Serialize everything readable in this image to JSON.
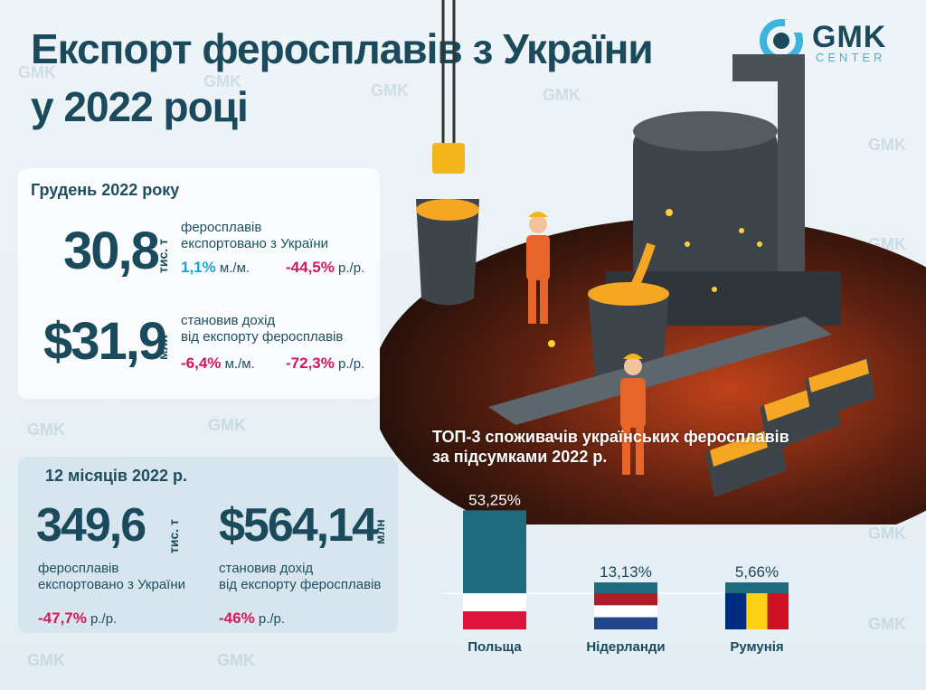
{
  "title_line1": "Експорт феросплавів з України",
  "title_line2": "у 2022 році",
  "logo": {
    "word": "GMK",
    "sub": "CENTER",
    "icon": "gmk-center-logo-icon"
  },
  "watermark": "GMK",
  "december": {
    "heading": "Грудень 2022 року",
    "volume": {
      "value": "30,8",
      "unit": "тис. т",
      "desc1": "феросплавів",
      "desc2": "експортовано з України",
      "mm_value": "1,1%",
      "mm_label": " м./м.",
      "yy_value": "-44,5%",
      "yy_label": " р./р."
    },
    "revenue": {
      "value": "$31,9",
      "unit": "млн",
      "desc1": "становив дохід",
      "desc2": "від експорту феросплавів",
      "mm_value": "-6,4%",
      "mm_label": " м./м.",
      "yy_value": "-72,3%",
      "yy_label": " р./р."
    }
  },
  "year": {
    "heading": "12 місяців 2022 р.",
    "volume": {
      "value": "349,6",
      "unit": "тис. т",
      "desc1": "феросплавів",
      "desc2": "експортовано з України",
      "yy_value": "-47,7%",
      "yy_label": " р./р."
    },
    "revenue": {
      "value": "$564,14",
      "unit": "млн",
      "desc1": "становив дохід",
      "desc2": "від експорту феросплавів",
      "yy_value": "-46%",
      "yy_label": " р./р."
    }
  },
  "colors": {
    "bar": "#1f6b7d",
    "accent_pos": "#1aa5d8",
    "accent_neg": "#d11a5a",
    "title": "#1b4a5c"
  },
  "chart_data": {
    "type": "bar",
    "title": "ТОП-3 споживачів українських феросплавів за підсумками 2022 р.",
    "title_line1": "ТОП-3 споживачів українських феросплавів",
    "title_line2": "за підсумками 2022 р.",
    "categories": [
      "Польща",
      "Нідерланди",
      "Румунія"
    ],
    "values": [
      53.25,
      13.13,
      5.66
    ],
    "value_labels": [
      "53,25%",
      "13,13%",
      "5,66%"
    ],
    "unit": "%",
    "flags": [
      "poland-flag-icon",
      "netherlands-flag-icon",
      "romania-flag-icon"
    ],
    "ylim": [
      0,
      55
    ],
    "grid": false,
    "legend": "none"
  }
}
